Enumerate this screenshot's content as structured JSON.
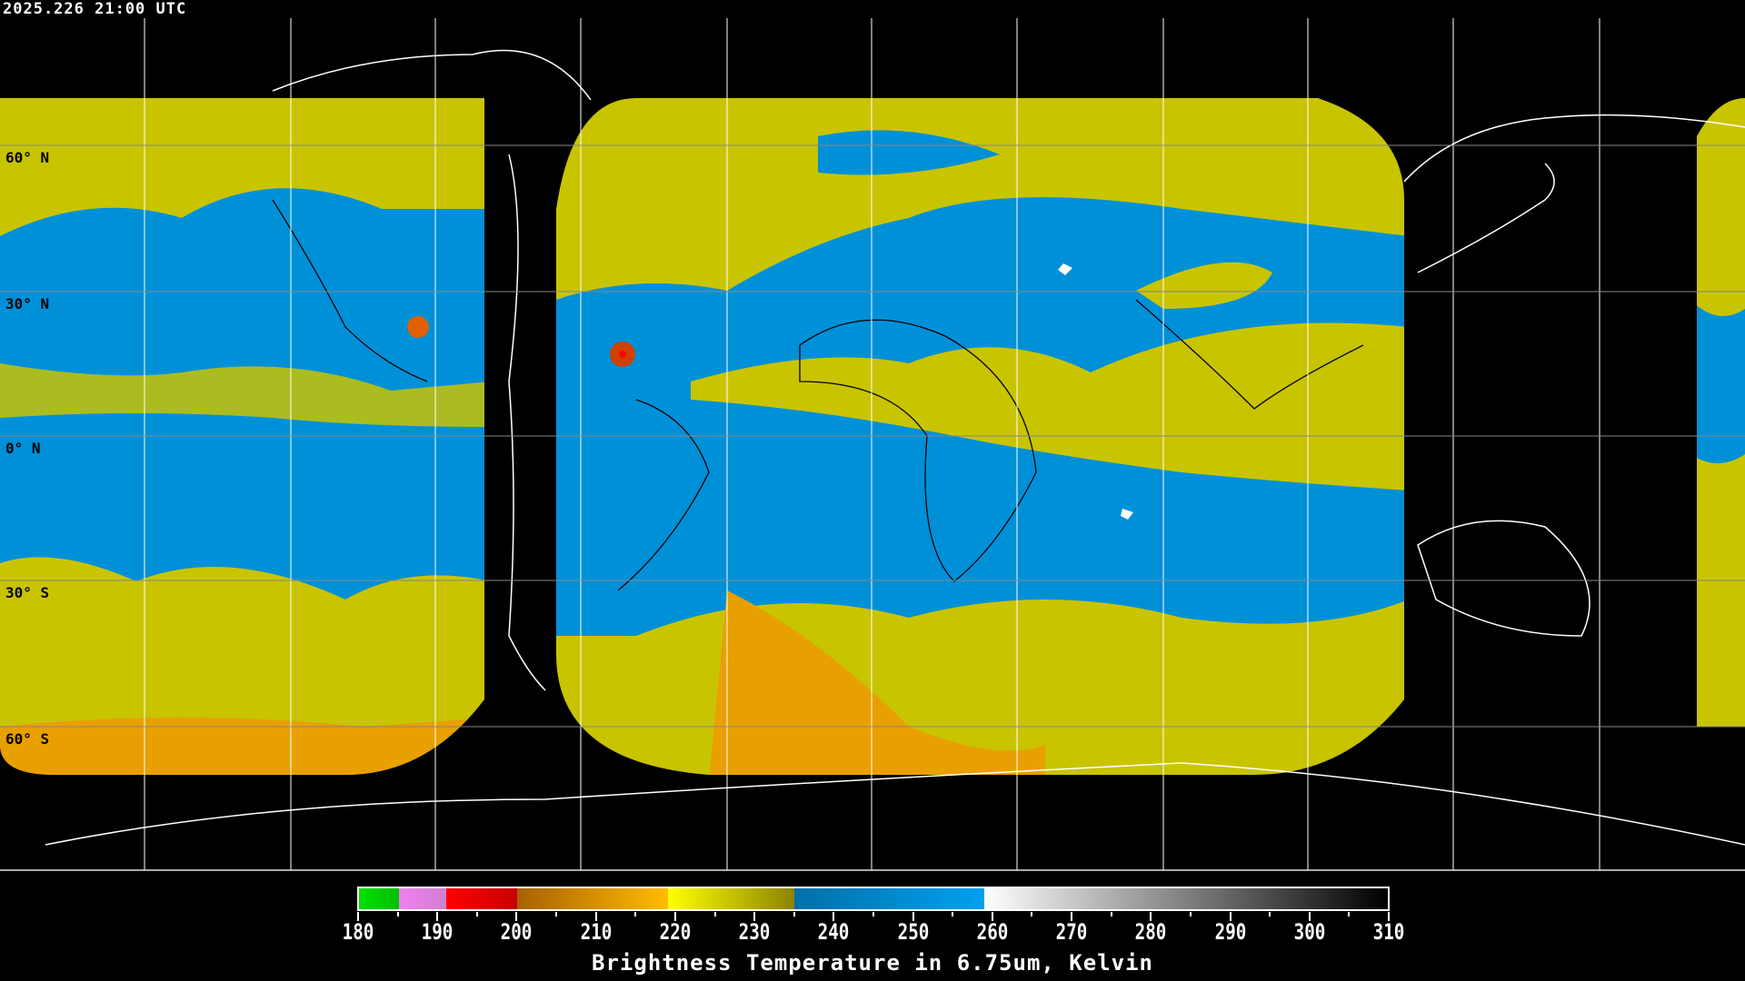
{
  "timestamp": "2025.226 21:00 UTC",
  "map": {
    "latitude_labels": [
      "60° N",
      "30° N",
      "0° N",
      "30° S",
      "60° S"
    ],
    "colors": {
      "cold_cloud": "#c8c400",
      "moist": "#0090d8",
      "coast": "#ffffff",
      "grid": "#ffffff"
    }
  },
  "colorbar": {
    "title": "Brightness Temperature in 6.75um, Kelvin",
    "range": [
      180,
      310
    ],
    "tick_labels": [
      "180",
      "190",
      "200",
      "210",
      "220",
      "230",
      "240",
      "250",
      "260",
      "270",
      "280",
      "290",
      "300",
      "310"
    ],
    "segments": [
      {
        "from": 180,
        "to": 185,
        "colors": [
          "#00e000",
          "#00c000"
        ]
      },
      {
        "from": 185,
        "to": 191,
        "colors": [
          "#f080f0",
          "#d080d0"
        ]
      },
      {
        "from": 191,
        "to": 200,
        "colors": [
          "#ff0000",
          "#c80000"
        ]
      },
      {
        "from": 200,
        "to": 219,
        "colors": [
          "#a86000",
          "#ffbc00"
        ]
      },
      {
        "from": 219,
        "to": 235,
        "colors": [
          "#ffff00",
          "#8c8400"
        ]
      },
      {
        "from": 235,
        "to": 259,
        "colors": [
          "#0070a8",
          "#00a0f0"
        ]
      },
      {
        "from": 259,
        "to": 310,
        "colors": [
          "#ffffff",
          "#000000"
        ]
      }
    ]
  }
}
